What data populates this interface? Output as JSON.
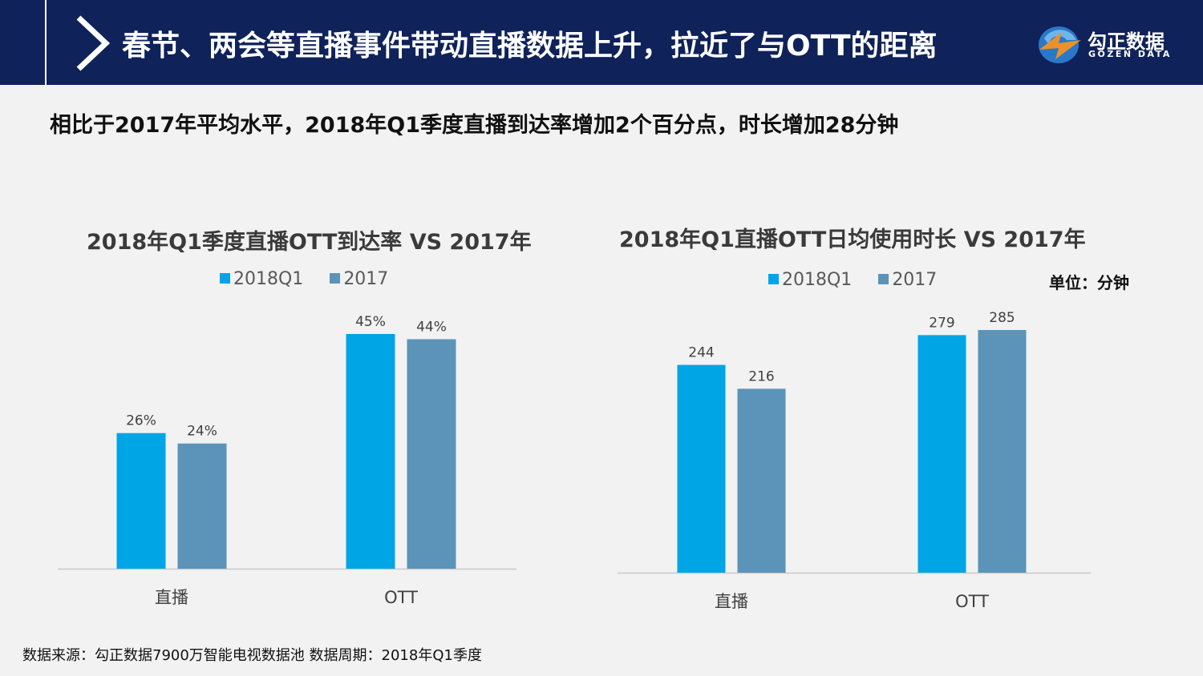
{
  "header": {
    "title": "春节、两会等直播事件带动直播数据上升，拉近了与OTT的距离",
    "logo_name": "勾正数据",
    "logo_en": "GOZEN DATA"
  },
  "subtitle": "相比于2017年平均水平，2018年Q1季度直播到达率增加2个百分点，时长增加28分钟",
  "colors": {
    "series_2018q1": "#00a5e6",
    "series_2017": "#5b94b8",
    "header_bg": "#0f2259"
  },
  "chart_data": [
    {
      "type": "bar",
      "title": "2018年Q1季度直播OTT到达率 VS 2017年",
      "categories": [
        "直播",
        "OTT"
      ],
      "series": [
        {
          "name": "2018Q1",
          "values": [
            26,
            45
          ],
          "labels": [
            "26%",
            "45%"
          ]
        },
        {
          "name": "2017",
          "values": [
            24,
            44
          ],
          "labels": [
            "24%",
            "44%"
          ]
        }
      ],
      "ylim": [
        0,
        45
      ],
      "grid": false,
      "legend": "top-center"
    },
    {
      "type": "bar",
      "title": "2018年Q1直播OTT日均使用时长 VS 2017年",
      "unit": "单位：分钟",
      "categories": [
        "直播",
        "OTT"
      ],
      "series": [
        {
          "name": "2018Q1",
          "values": [
            244,
            279
          ],
          "labels": [
            "244",
            "279"
          ]
        },
        {
          "name": "2017",
          "values": [
            216,
            285
          ],
          "labels": [
            "216",
            "285"
          ]
        }
      ],
      "ylim": [
        0,
        285
      ],
      "grid": false,
      "legend": "top-center"
    }
  ],
  "source": "数据来源：勾正数据7900万智能电视数据池  数据周期：2018年Q1季度"
}
